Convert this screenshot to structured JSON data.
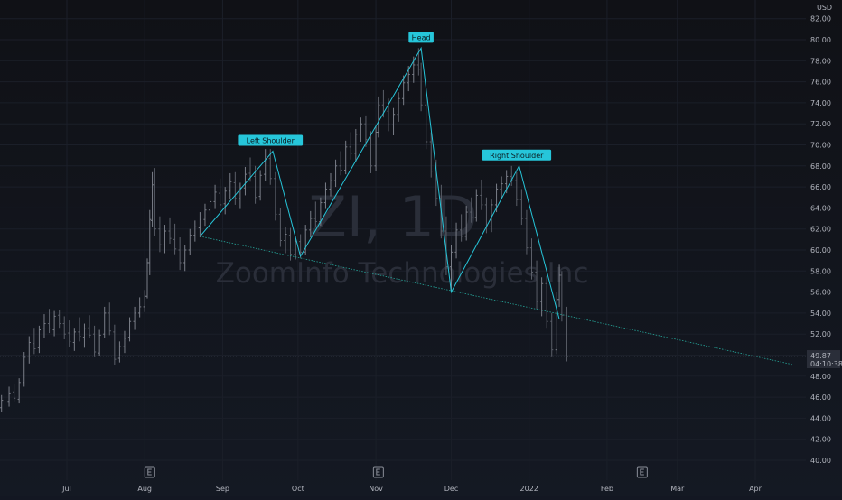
{
  "chart_data": {
    "type": "candlestick",
    "watermark": {
      "symbol": "ZI, 1D",
      "name": "ZoomInfo Technologies Inc"
    },
    "currency": "USD",
    "y_ticks": [
      "82.00",
      "80.00",
      "78.00",
      "76.00",
      "74.00",
      "72.00",
      "70.00",
      "68.00",
      "66.00",
      "64.00",
      "62.00",
      "60.00",
      "58.00",
      "56.00",
      "54.00",
      "52.00",
      "50.00",
      "48.00",
      "46.00",
      "44.00",
      "42.00",
      "40.00"
    ],
    "x_ticks": [
      {
        "label": "Jul",
        "date": "2021-07-01"
      },
      {
        "label": "Aug",
        "date": "2021-08-01"
      },
      {
        "label": "Sep",
        "date": "2021-09-01"
      },
      {
        "label": "Oct",
        "date": "2021-10-01"
      },
      {
        "label": "Nov",
        "date": "2021-11-01"
      },
      {
        "label": "Dec",
        "date": "2021-12-01"
      },
      {
        "label": "2022",
        "date": "2022-01-01"
      },
      {
        "label": "Feb",
        "date": "2022-02-01"
      },
      {
        "label": "Mar",
        "date": "2022-03-01"
      },
      {
        "label": "Apr",
        "date": "2022-04-01"
      }
    ],
    "ylim": [
      39.5,
      83.0
    ],
    "last_price": {
      "price": "49.87",
      "countdown": "04:10:38"
    },
    "earnings_markers": [
      {
        "date": "2021-08-03"
      },
      {
        "date": "2021-11-02"
      },
      {
        "date": "2022-02-15"
      }
    ],
    "pattern": {
      "points": [
        {
          "date": "2021-08-23",
          "price": 61.3
        },
        {
          "date": "2021-09-21",
          "price": 69.4
        },
        {
          "date": "2021-10-02",
          "price": 59.4
        },
        {
          "date": "2021-11-19",
          "price": 79.2
        },
        {
          "date": "2021-12-01",
          "price": 56.0
        },
        {
          "date": "2021-12-28",
          "price": 68.0
        },
        {
          "date": "2022-01-13",
          "price": 53.4
        }
      ],
      "labels": [
        {
          "text": "Left Shoulder",
          "date": "2021-09-20",
          "price": 69.4
        },
        {
          "text": "Head",
          "date": "2021-11-19",
          "price": 79.2
        },
        {
          "text": "Right Shoulder",
          "date": "2021-12-27",
          "price": 68.0
        }
      ],
      "neckline": [
        {
          "date": "2021-08-23",
          "price": 61.3
        },
        {
          "date": "2022-04-16",
          "price": 49.1
        }
      ]
    },
    "ohlc": [
      [
        "2021-06-01",
        43.8,
        44.6,
        43.2,
        44.3
      ],
      [
        "2021-06-03",
        44.3,
        45.4,
        43.9,
        45.0
      ],
      [
        "2021-06-05",
        45.0,
        46.2,
        44.6,
        45.7
      ],
      [
        "2021-06-08",
        45.6,
        47.0,
        45.1,
        46.4
      ],
      [
        "2021-06-10",
        46.5,
        47.3,
        45.6,
        45.9
      ],
      [
        "2021-06-12",
        45.8,
        47.8,
        45.4,
        47.4
      ],
      [
        "2021-06-14",
        47.4,
        50.3,
        47.0,
        49.8
      ],
      [
        "2021-06-16",
        49.9,
        51.8,
        49.2,
        51.2
      ],
      [
        "2021-06-18",
        51.1,
        52.6,
        50.1,
        50.6
      ],
      [
        "2021-06-20",
        50.7,
        52.8,
        50.2,
        52.4
      ],
      [
        "2021-06-22",
        52.5,
        53.9,
        51.6,
        53.0
      ],
      [
        "2021-06-24",
        53.0,
        54.4,
        52.1,
        52.5
      ],
      [
        "2021-06-26",
        52.4,
        54.2,
        51.8,
        53.7
      ],
      [
        "2021-06-28",
        53.8,
        54.3,
        52.6,
        53.0
      ],
      [
        "2021-06-30",
        53.0,
        53.7,
        51.5,
        52.0
      ],
      [
        "2021-07-02",
        52.1,
        53.3,
        50.8,
        51.3
      ],
      [
        "2021-07-04",
        51.2,
        52.6,
        50.4,
        52.2
      ],
      [
        "2021-07-06",
        52.2,
        53.6,
        51.3,
        51.8
      ],
      [
        "2021-07-08",
        51.7,
        53.0,
        50.7,
        52.5
      ],
      [
        "2021-07-10",
        52.6,
        53.8,
        51.6,
        51.9
      ],
      [
        "2021-07-12",
        52.0,
        52.8,
        49.8,
        50.3
      ],
      [
        "2021-07-14",
        50.2,
        52.4,
        49.9,
        51.9
      ],
      [
        "2021-07-16",
        52.0,
        54.6,
        51.6,
        54.0
      ],
      [
        "2021-07-18",
        54.0,
        55.0,
        51.9,
        52.3
      ],
      [
        "2021-07-20",
        52.2,
        52.9,
        49.1,
        49.6
      ],
      [
        "2021-07-22",
        49.7,
        51.3,
        49.3,
        50.8
      ],
      [
        "2021-07-24",
        50.8,
        52.3,
        50.2,
        51.6
      ],
      [
        "2021-07-26",
        51.7,
        53.6,
        51.3,
        53.2
      ],
      [
        "2021-07-28",
        53.2,
        54.6,
        52.4,
        54.0
      ],
      [
        "2021-07-30",
        54.0,
        55.5,
        53.6,
        54.6
      ],
      [
        "2021-08-01",
        54.6,
        56.2,
        54.1,
        55.6
      ],
      [
        "2021-08-02",
        55.6,
        59.2,
        55.4,
        58.8
      ],
      [
        "2021-08-03",
        58.8,
        63.8,
        57.6,
        62.9
      ],
      [
        "2021-08-04",
        62.8,
        67.4,
        62.2,
        66.2
      ],
      [
        "2021-08-05",
        66.2,
        67.8,
        61.3,
        62.0
      ],
      [
        "2021-08-07",
        62.0,
        63.2,
        59.8,
        60.5
      ],
      [
        "2021-08-09",
        60.5,
        62.4,
        59.7,
        61.8
      ],
      [
        "2021-08-11",
        61.8,
        63.1,
        60.6,
        61.1
      ],
      [
        "2021-08-13",
        61.0,
        62.5,
        59.6,
        60.1
      ],
      [
        "2021-08-15",
        60.0,
        61.2,
        58.1,
        58.8
      ],
      [
        "2021-08-17",
        58.8,
        60.5,
        58.0,
        60.0
      ],
      [
        "2021-08-19",
        60.0,
        62.0,
        59.5,
        61.4
      ],
      [
        "2021-08-21",
        61.4,
        62.8,
        60.8,
        62.2
      ],
      [
        "2021-08-23",
        62.1,
        63.6,
        61.2,
        62.9
      ],
      [
        "2021-08-25",
        62.9,
        64.4,
        62.3,
        63.8
      ],
      [
        "2021-08-27",
        63.8,
        65.3,
        62.8,
        64.6
      ],
      [
        "2021-08-29",
        64.6,
        66.2,
        63.9,
        65.5
      ],
      [
        "2021-08-31",
        65.4,
        66.8,
        63.8,
        64.3
      ],
      [
        "2021-09-02",
        64.4,
        66.0,
        63.4,
        65.6
      ],
      [
        "2021-09-04",
        65.6,
        67.3,
        64.8,
        66.5
      ],
      [
        "2021-09-06",
        66.4,
        67.4,
        64.3,
        64.9
      ],
      [
        "2021-09-08",
        64.9,
        66.4,
        63.9,
        65.9
      ],
      [
        "2021-09-10",
        65.9,
        67.9,
        65.2,
        67.2
      ],
      [
        "2021-09-12",
        67.3,
        68.8,
        66.5,
        67.0
      ],
      [
        "2021-09-14",
        67.0,
        68.0,
        64.4,
        65.0
      ],
      [
        "2021-09-16",
        65.1,
        67.6,
        64.7,
        67.1
      ],
      [
        "2021-09-18",
        67.2,
        69.6,
        66.6,
        68.7
      ],
      [
        "2021-09-20",
        68.7,
        69.6,
        66.2,
        66.8
      ],
      [
        "2021-09-22",
        66.8,
        67.4,
        62.8,
        63.4
      ],
      [
        "2021-09-24",
        63.4,
        64.0,
        60.3,
        60.9
      ],
      [
        "2021-09-26",
        60.9,
        62.2,
        59.7,
        61.5
      ],
      [
        "2021-09-28",
        61.4,
        62.1,
        59.0,
        59.6
      ],
      [
        "2021-09-30",
        59.6,
        61.3,
        59.1,
        60.8
      ],
      [
        "2021-10-02",
        60.8,
        61.5,
        59.2,
        59.8
      ],
      [
        "2021-10-04",
        59.8,
        62.4,
        59.5,
        61.9
      ],
      [
        "2021-10-06",
        61.9,
        63.7,
        61.2,
        63.0
      ],
      [
        "2021-10-08",
        63.0,
        64.6,
        62.2,
        62.7
      ],
      [
        "2021-10-10",
        62.7,
        65.0,
        62.3,
        64.5
      ],
      [
        "2021-10-12",
        64.5,
        66.4,
        63.9,
        65.8
      ],
      [
        "2021-10-14",
        65.8,
        67.3,
        65.1,
        66.6
      ],
      [
        "2021-10-16",
        66.6,
        68.6,
        66.0,
        68.0
      ],
      [
        "2021-10-18",
        68.0,
        69.4,
        67.1,
        67.6
      ],
      [
        "2021-10-20",
        67.6,
        70.4,
        67.2,
        69.8
      ],
      [
        "2021-10-22",
        69.8,
        71.2,
        68.6,
        69.2
      ],
      [
        "2021-10-24",
        69.2,
        71.5,
        68.4,
        71.0
      ],
      [
        "2021-10-26",
        71.0,
        72.6,
        70.3,
        72.0
      ],
      [
        "2021-10-28",
        72.0,
        72.8,
        69.8,
        70.5
      ],
      [
        "2021-10-30",
        70.5,
        71.3,
        67.3,
        68.0
      ],
      [
        "2021-11-01",
        68.0,
        71.8,
        67.5,
        71.2
      ],
      [
        "2021-11-02",
        71.2,
        74.6,
        70.7,
        73.8
      ],
      [
        "2021-11-04",
        73.8,
        75.2,
        72.6,
        73.2
      ],
      [
        "2021-11-06",
        73.2,
        74.4,
        71.3,
        71.9
      ],
      [
        "2021-11-08",
        71.9,
        73.5,
        70.9,
        72.9
      ],
      [
        "2021-11-10",
        72.9,
        75.0,
        72.2,
        74.4
      ],
      [
        "2021-11-12",
        74.4,
        76.6,
        73.8,
        75.9
      ],
      [
        "2021-11-14",
        75.9,
        77.5,
        75.1,
        76.7
      ],
      [
        "2021-11-16",
        76.7,
        78.4,
        75.9,
        77.6
      ],
      [
        "2021-11-18",
        77.6,
        79.2,
        76.6,
        77.2
      ],
      [
        "2021-11-19",
        77.2,
        77.8,
        73.2,
        73.8
      ],
      [
        "2021-11-21",
        73.8,
        74.6,
        69.6,
        70.3
      ],
      [
        "2021-11-23",
        70.3,
        71.2,
        66.9,
        67.5
      ],
      [
        "2021-11-25",
        67.5,
        68.6,
        64.2,
        64.9
      ],
      [
        "2021-11-27",
        64.9,
        66.2,
        61.1,
        61.8
      ],
      [
        "2021-11-29",
        61.8,
        63.2,
        57.6,
        58.4
      ],
      [
        "2021-12-01",
        58.4,
        60.5,
        56.0,
        59.8
      ],
      [
        "2021-12-03",
        59.8,
        62.6,
        59.2,
        61.9
      ],
      [
        "2021-12-05",
        61.9,
        63.4,
        60.8,
        61.3
      ],
      [
        "2021-12-07",
        61.3,
        64.2,
        60.9,
        63.6
      ],
      [
        "2021-12-09",
        63.6,
        65.0,
        62.6,
        63.1
      ],
      [
        "2021-12-11",
        63.1,
        65.8,
        62.7,
        65.2
      ],
      [
        "2021-12-13",
        65.2,
        66.7,
        63.8,
        64.3
      ],
      [
        "2021-12-15",
        64.3,
        65.0,
        61.6,
        62.2
      ],
      [
        "2021-12-17",
        62.2,
        64.8,
        61.7,
        64.3
      ],
      [
        "2021-12-19",
        64.3,
        66.3,
        63.6,
        65.8
      ],
      [
        "2021-12-21",
        65.8,
        67.0,
        64.8,
        66.3
      ],
      [
        "2021-12-23",
        66.3,
        67.6,
        65.4,
        67.0
      ],
      [
        "2021-12-25",
        67.0,
        68.0,
        66.1,
        66.6
      ],
      [
        "2021-12-27",
        66.6,
        67.4,
        64.2,
        64.8
      ],
      [
        "2021-12-29",
        64.8,
        65.8,
        62.4,
        63.0
      ],
      [
        "2021-12-31",
        63.0,
        63.8,
        59.6,
        60.2
      ],
      [
        "2022-01-02",
        60.2,
        61.1,
        57.2,
        57.9
      ],
      [
        "2022-01-04",
        57.9,
        59.0,
        54.4,
        55.1
      ],
      [
        "2022-01-06",
        55.1,
        57.4,
        53.7,
        56.8
      ],
      [
        "2022-01-08",
        56.8,
        57.5,
        52.6,
        53.2
      ],
      [
        "2022-01-10",
        53.2,
        54.0,
        49.8,
        50.5
      ],
      [
        "2022-01-12",
        50.5,
        56.0,
        50.1,
        55.3
      ],
      [
        "2022-01-13",
        55.3,
        58.6,
        54.6,
        57.6
      ],
      [
        "2022-01-14",
        57.6,
        58.0,
        53.2,
        53.8
      ],
      [
        "2022-01-16",
        53.8,
        54.6,
        49.4,
        49.87
      ]
    ]
  }
}
